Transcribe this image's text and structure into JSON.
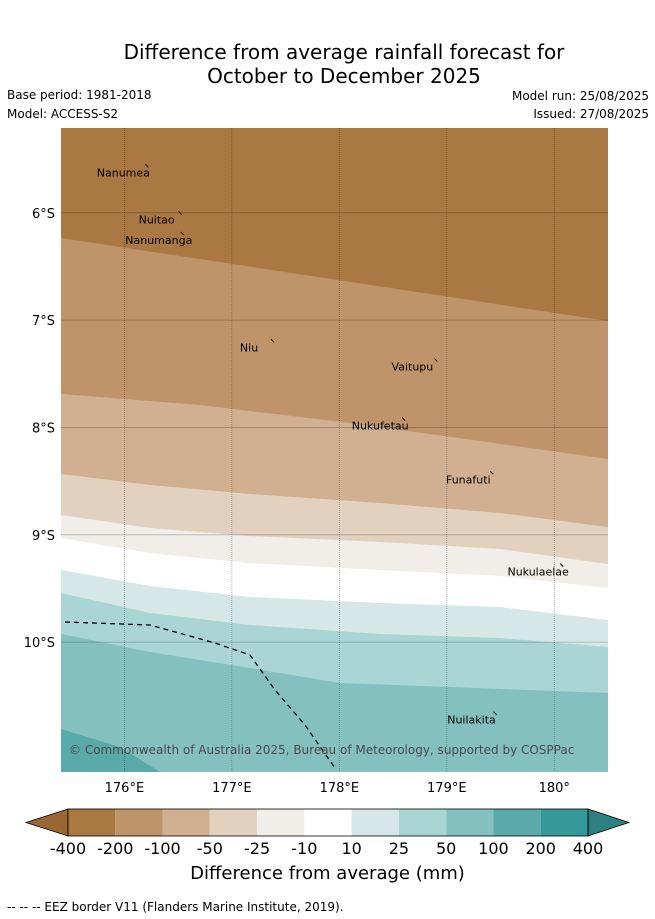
{
  "title_line1": "Difference from average rainfall forecast for",
  "title_line2": "October to December 2025",
  "base_period": "Base period: 1981-2018",
  "model": "Model: ACCESS-S2",
  "model_run": "Model run: 25/08/2025",
  "issued": "Issued: 27/08/2025",
  "map": {
    "lon_range": [
      175.41,
      180.5
    ],
    "lat_range": [
      -11.21,
      -5.21
    ],
    "lat_ticks": [
      {
        "value": -6,
        "label": "6°S"
      },
      {
        "value": -7,
        "label": "7°S"
      },
      {
        "value": -8,
        "label": "8°S"
      },
      {
        "value": -9,
        "label": "9°S"
      },
      {
        "value": -10,
        "label": "10°S"
      }
    ],
    "lon_ticks": [
      {
        "value": 176,
        "label": "176°E"
      },
      {
        "value": 177,
        "label": "177°E"
      },
      {
        "value": 178,
        "label": "178°E"
      },
      {
        "value": 179,
        "label": "179°E"
      },
      {
        "value": 180,
        "label": "180°"
      }
    ],
    "places": [
      {
        "name": "Nanumea",
        "lon": 175.99,
        "lat": -5.66
      },
      {
        "name": "Nuitao",
        "lon": 176.3,
        "lat": -6.1
      },
      {
        "name": "Nanumanga",
        "lon": 176.32,
        "lat": -6.29
      },
      {
        "name": "Niu",
        "lon": 177.16,
        "lat": -7.29
      },
      {
        "name": "Vaitupu",
        "lon": 178.68,
        "lat": -7.47
      },
      {
        "name": "Nukufetau",
        "lon": 178.38,
        "lat": -8.02
      },
      {
        "name": "Funafuti",
        "lon": 179.2,
        "lat": -8.52
      },
      {
        "name": "Nukulaelae",
        "lon": 179.85,
        "lat": -9.38
      },
      {
        "name": "Nuilakita",
        "lon": 179.23,
        "lat": -10.76
      }
    ],
    "copyright": "© Commonwealth of Australia 2025, Bureau of Meteorology, supported by COSPPac"
  },
  "colorbar": {
    "ticks": [
      "-400",
      "-200",
      "-100",
      "-50",
      "-25",
      "-10",
      "10",
      "25",
      "50",
      "100",
      "200",
      "400"
    ],
    "colors": [
      "#aa7943",
      "#bf946a",
      "#d0b091",
      "#e3d1bf",
      "#f1ede8",
      "#ffffff",
      "#d5e8e7",
      "#aad5d5",
      "#84c0c0",
      "#5aaaaa",
      "#35999a"
    ],
    "below_color": "#9a6634",
    "above_color": "#2e7f80",
    "title": "Difference from average (mm)"
  },
  "footer": "--  --  -- EEZ border V11 (Flanders Marine Institute, 2019)."
}
